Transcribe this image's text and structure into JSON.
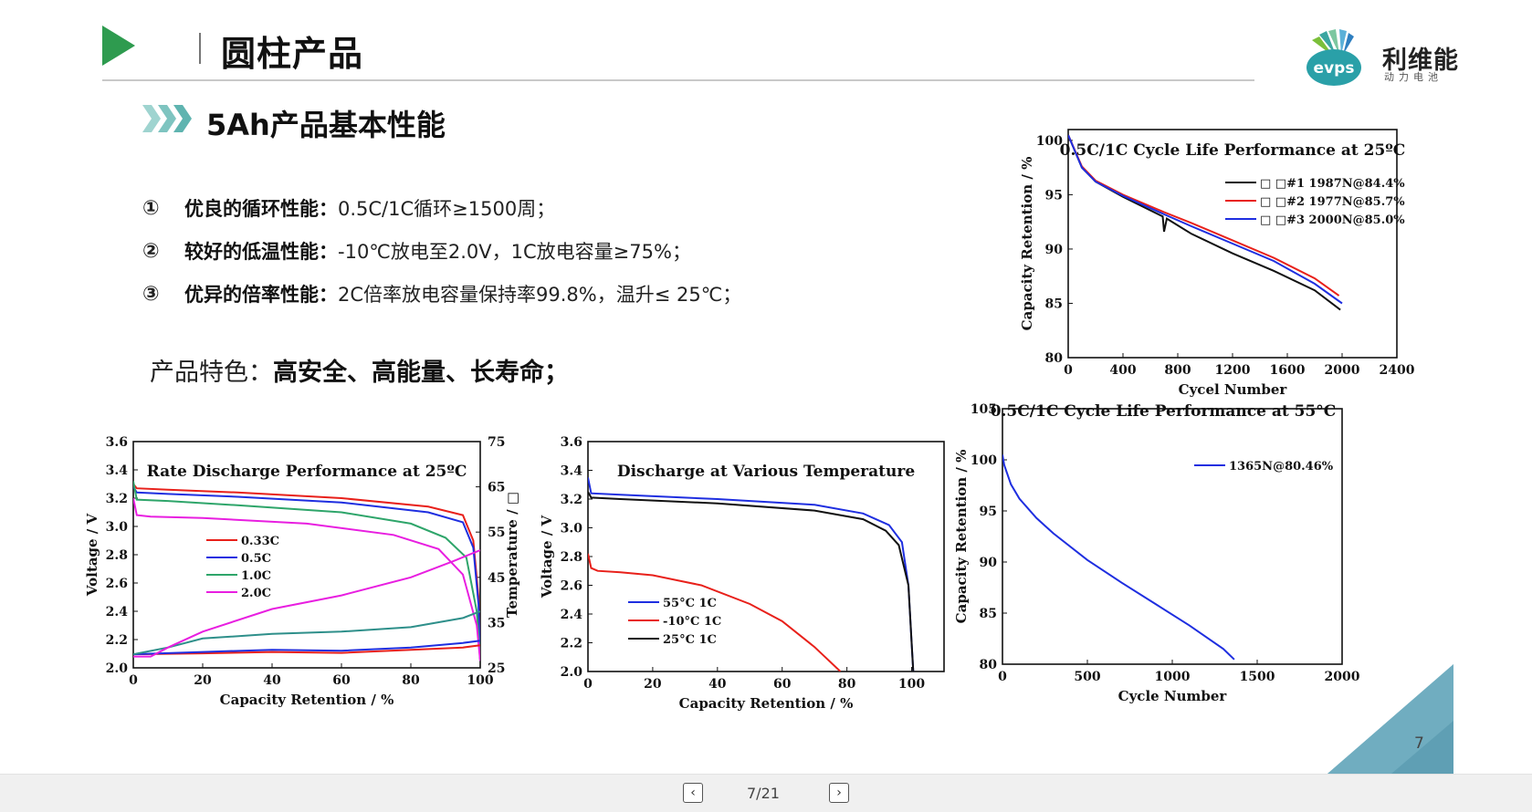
{
  "header": {
    "title": "圆柱产品",
    "logo_text": "evps",
    "logo_cn": "利维能",
    "logo_sub": "动力电池"
  },
  "section": {
    "title": "5Ah产品基本性能"
  },
  "features": [
    {
      "num": "①",
      "label": "优良的循环性能：",
      "text": "0.5C/1C循环≥1500周；"
    },
    {
      "num": "②",
      "label": "较好的低温性能：",
      "text": "-10℃放电至2.0V，1C放电容量≥75%；"
    },
    {
      "num": "③",
      "label": "优异的倍率性能：",
      "text": "2C倍率放电容量保持率99.8%，温升≤ 25℃；"
    }
  ],
  "tagline": {
    "prefix": "产品特色：",
    "bold": "高安全、高能量、长寿命；"
  },
  "colors": {
    "accent": "#2e9b4f",
    "teal": "#6fb3c1"
  },
  "chart_data": [
    {
      "type": "line",
      "title": "0.5C/1C Cycle Life Performance at 25ºC",
      "xlabel": "Cycel Number",
      "ylabel": "Capacity Retention / %",
      "xlim": [
        0,
        2400
      ],
      "ylim": [
        80,
        101
      ],
      "xticks": [
        0,
        400,
        800,
        1200,
        1600,
        2000,
        2400
      ],
      "yticks": [
        80,
        85,
        90,
        95,
        100
      ],
      "series": [
        {
          "name": "□ □#1 1987N@84.4%",
          "color": "#111111",
          "x": [
            0,
            100,
            200,
            400,
            690,
            700,
            720,
            900,
            1200,
            1500,
            1800,
            1987
          ],
          "y": [
            100.5,
            97.5,
            96.2,
            94.8,
            93.0,
            91.6,
            92.8,
            91.4,
            89.6,
            88.0,
            86.2,
            84.4
          ]
        },
        {
          "name": "□ □#2 1977N@85.7%",
          "color": "#e8201a",
          "x": [
            0,
            100,
            200,
            400,
            700,
            900,
            1200,
            1500,
            1800,
            1977
          ],
          "y": [
            100.5,
            97.6,
            96.3,
            95.0,
            93.4,
            92.4,
            90.8,
            89.2,
            87.3,
            85.7
          ]
        },
        {
          "name": "□ □#3 2000N@85.0%",
          "color": "#1e2ee0",
          "x": [
            0,
            100,
            200,
            400,
            700,
            900,
            1200,
            1500,
            1800,
            2000
          ],
          "y": [
            100.5,
            97.5,
            96.2,
            94.9,
            93.2,
            92.1,
            90.5,
            88.9,
            86.8,
            85.0
          ]
        }
      ]
    },
    {
      "type": "line",
      "title": "Rate Discharge Performance at 25ºC",
      "xlabel": "Capacity Retention / %",
      "ylabel": "Voltage / V",
      "y2label": "Temperature / □",
      "xlim": [
        0,
        100
      ],
      "ylim": [
        2.0,
        3.6
      ],
      "y2lim": [
        25,
        75
      ],
      "xticks": [
        0,
        20,
        40,
        60,
        80,
        100
      ],
      "yticks": [
        2.0,
        2.2,
        2.4,
        2.6,
        2.8,
        3.0,
        3.2,
        3.4,
        3.6
      ],
      "y2ticks": [
        25,
        35,
        45,
        55,
        65,
        75
      ],
      "series": [
        {
          "name": "0.33C",
          "color": "#e8201a",
          "x": [
            0,
            1,
            10,
            30,
            60,
            85,
            95,
            98,
            99.5,
            100
          ],
          "y": [
            3.3,
            3.27,
            3.26,
            3.24,
            3.2,
            3.14,
            3.08,
            2.9,
            2.5,
            2.05
          ]
        },
        {
          "name": "0.5C",
          "color": "#1e2ee0",
          "x": [
            0,
            1,
            10,
            30,
            60,
            85,
            95,
            98,
            99.5,
            100
          ],
          "y": [
            3.28,
            3.24,
            3.23,
            3.21,
            3.17,
            3.1,
            3.03,
            2.85,
            2.45,
            2.05
          ]
        },
        {
          "name": "1.0C",
          "color": "#2ea56a",
          "x": [
            0,
            1,
            10,
            30,
            60,
            80,
            90,
            96,
            99,
            100
          ],
          "y": [
            3.32,
            3.19,
            3.18,
            3.15,
            3.1,
            3.02,
            2.92,
            2.78,
            2.4,
            2.05
          ]
        },
        {
          "name": "2.0C",
          "color": "#e81ee0",
          "x": [
            0,
            1,
            5,
            20,
            50,
            75,
            88,
            95,
            99,
            100
          ],
          "y": [
            3.2,
            3.08,
            3.07,
            3.06,
            3.02,
            2.94,
            2.84,
            2.66,
            2.3,
            2.05
          ]
        }
      ],
      "temperature_series": [
        {
          "name": "0.33C",
          "color": "#e8201a",
          "x": [
            0,
            20,
            40,
            60,
            80,
            95,
            100
          ],
          "y2": [
            28,
            28.2,
            28.5,
            28.3,
            29,
            29.5,
            30
          ]
        },
        {
          "name": "0.5C",
          "color": "#1e2ee0",
          "x": [
            0,
            20,
            40,
            60,
            80,
            95,
            100
          ],
          "y2": [
            28,
            28.5,
            29,
            28.8,
            29.5,
            30.5,
            31
          ]
        },
        {
          "name": "1.0C",
          "color": "#2e8f8a",
          "x": [
            0,
            10,
            20,
            40,
            60,
            80,
            95,
            100
          ],
          "y2": [
            28,
            29.5,
            31.5,
            32.5,
            33,
            34,
            36,
            37.5
          ]
        },
        {
          "name": "2.0C",
          "color": "#e81ee0",
          "x": [
            0,
            5,
            10,
            20,
            40,
            60,
            80,
            92,
            100
          ],
          "y2": [
            27.5,
            27.5,
            29.5,
            33,
            38,
            41,
            45,
            48.5,
            51
          ]
        }
      ]
    },
    {
      "type": "line",
      "title": "Discharge at  Various Temperature",
      "xlabel": "Capacity Retention / %",
      "ylabel": "Voltage / V",
      "xlim": [
        0,
        110
      ],
      "ylim": [
        2.0,
        3.6
      ],
      "xticks": [
        0,
        20,
        40,
        60,
        80,
        100
      ],
      "yticks": [
        2.0,
        2.2,
        2.4,
        2.6,
        2.8,
        3.0,
        3.2,
        3.4,
        3.6
      ],
      "series": [
        {
          "name": "55°C 1C",
          "color": "#1e2ee0",
          "x": [
            0,
            1,
            10,
            40,
            70,
            85,
            93,
            97,
            99,
            100,
            100.5
          ],
          "y": [
            3.35,
            3.24,
            3.23,
            3.2,
            3.16,
            3.1,
            3.02,
            2.9,
            2.6,
            2.2,
            2.0
          ]
        },
        {
          "name": "-10°C 1C",
          "color": "#e8201a",
          "x": [
            0,
            1,
            3,
            10,
            20,
            35,
            50,
            60,
            70,
            78
          ],
          "y": [
            2.82,
            2.72,
            2.7,
            2.69,
            2.67,
            2.6,
            2.47,
            2.35,
            2.17,
            2.0
          ]
        },
        {
          "name": "25°C 1C",
          "color": "#111111",
          "x": [
            0,
            1,
            10,
            40,
            70,
            85,
            92,
            96,
            99,
            100,
            100.5
          ],
          "y": [
            3.25,
            3.21,
            3.2,
            3.17,
            3.12,
            3.06,
            2.98,
            2.88,
            2.6,
            2.2,
            2.0
          ]
        }
      ]
    },
    {
      "type": "line",
      "title": "0.5C/1C Cycle Life Performance at 55°C",
      "xlabel": "Cycle Number",
      "ylabel": "Capacity Retention / %",
      "xlim": [
        0,
        2000
      ],
      "ylim": [
        80,
        105
      ],
      "xticks": [
        0,
        500,
        1000,
        1500,
        2000
      ],
      "yticks": [
        80,
        85,
        90,
        95,
        100,
        105
      ],
      "series": [
        {
          "name": "1365N@80.46%",
          "color": "#1e2ee0",
          "x": [
            0,
            10,
            50,
            100,
            200,
            300,
            500,
            700,
            900,
            1100,
            1300,
            1365
          ],
          "y": [
            100.5,
            99.5,
            97.6,
            96.2,
            94.3,
            92.8,
            90.2,
            88.0,
            85.9,
            83.8,
            81.5,
            80.46
          ]
        }
      ]
    }
  ],
  "footer": {
    "page_number": "7",
    "page_indicator": "7/21",
    "prev": "‹",
    "next": "›"
  }
}
